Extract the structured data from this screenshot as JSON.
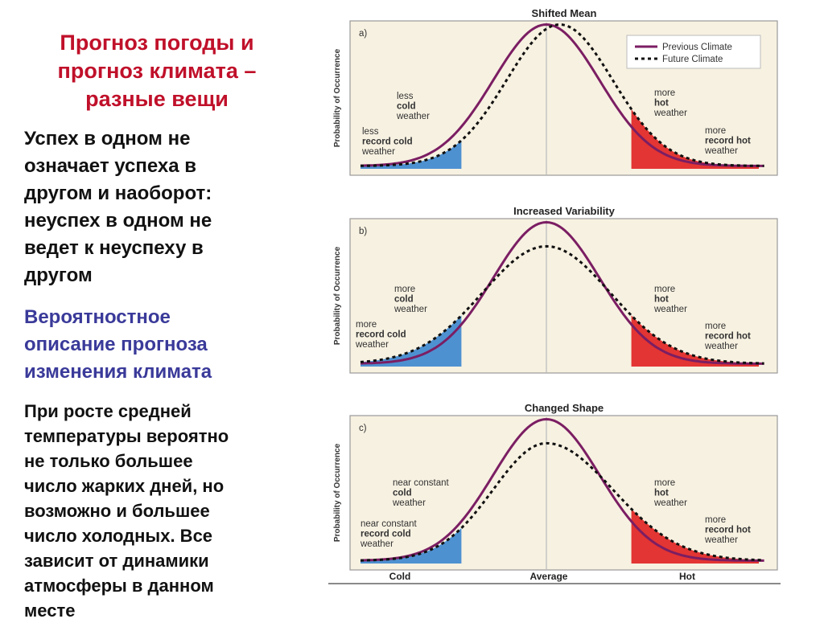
{
  "slide": {
    "title_lines": [
      "Прогноз погоды и",
      "прогноз климата –",
      "разные вещи"
    ],
    "paragraph1_lines": [
      "Успех в одном не",
      "означает успеха в",
      "другом и наоборот:",
      "неуспех в одном не",
      "ведет к неуспеху в",
      "другом"
    ],
    "paragraph2_lines": [
      "Вероятностное",
      "описание прогноза",
      "изменения климата"
    ],
    "paragraph3_lines": [
      "При росте средней",
      "температуры вероятно",
      "не только большее",
      "число жарких дней, но",
      "возможно и большее",
      "число холодных. Все",
      "зависит от динамики",
      "атмосферы в данном",
      "месте"
    ]
  },
  "colors": {
    "title": "#c0102a",
    "subtitle": "#3a3a9a",
    "previous_curve": "#7b1e63",
    "cold_fill": "#3b86cf",
    "hot_fill": "#e02020",
    "panel_bg": "#f7f1e1"
  },
  "chart_data": {
    "type": "line",
    "y_axis_label": "Probability of Occurrence",
    "x_tick_labels": [
      "Cold",
      "Average",
      "Hot"
    ],
    "legend": {
      "previous": "Previous Climate",
      "future": "Future Climate",
      "placement": "top-right"
    },
    "panels": [
      {
        "key": "a",
        "letter": "a)",
        "title": "Shifted Mean",
        "previous": {
          "mean": 0.0,
          "sd": 1.0
        },
        "future": {
          "mean": 0.25,
          "sd": 1.0,
          "peak": 1.0
        },
        "cold_fill_region": "left tail below -1.6",
        "hot_fill_region": "right tail above 1.6",
        "labels": [
          {
            "lines": [
              "less",
              "cold",
              "weather"
            ],
            "colored": 1,
            "color": "cold"
          },
          {
            "lines": [
              "less",
              "record cold",
              "weather"
            ],
            "colored": 1,
            "color": "dark"
          },
          {
            "lines": [
              "more",
              "hot",
              "weather"
            ],
            "colored": 1,
            "color": "hot"
          },
          {
            "lines": [
              "more",
              "record hot",
              "weather"
            ],
            "colored": 1,
            "color": "hot"
          }
        ]
      },
      {
        "key": "b",
        "letter": "b)",
        "title": "Increased Variability",
        "previous": {
          "mean": 0.0,
          "sd": 1.0
        },
        "future": {
          "mean": 0.0,
          "sd": 1.2,
          "peak": 0.83
        },
        "labels": [
          {
            "lines": [
              "more",
              "cold",
              "weather"
            ],
            "colored": 1,
            "color": "cold"
          },
          {
            "lines": [
              "more",
              "record cold",
              "weather"
            ],
            "colored": 1,
            "color": "dark"
          },
          {
            "lines": [
              "more",
              "hot",
              "weather"
            ],
            "colored": 1,
            "color": "hot"
          },
          {
            "lines": [
              "more",
              "record hot",
              "weather"
            ],
            "colored": 1,
            "color": "hot"
          }
        ]
      },
      {
        "key": "c",
        "letter": "c)",
        "title": "Changed Shape",
        "previous": {
          "mean": 0.0,
          "sd": 1.0
        },
        "future": {
          "mean": 0.0,
          "sd_left": 1.0,
          "sd_right": 1.25,
          "peak": 0.83
        },
        "labels": [
          {
            "lines": [
              "near constant",
              "cold",
              "weather"
            ],
            "colored": 1,
            "color": "cold"
          },
          {
            "lines": [
              "near constant",
              "record cold",
              "weather"
            ],
            "colored": 1,
            "color": "dark"
          },
          {
            "lines": [
              "more",
              "hot",
              "weather"
            ],
            "colored": 1,
            "color": "hot"
          },
          {
            "lines": [
              "more",
              "record hot",
              "weather"
            ],
            "colored": 1,
            "color": "hot"
          }
        ]
      }
    ]
  }
}
